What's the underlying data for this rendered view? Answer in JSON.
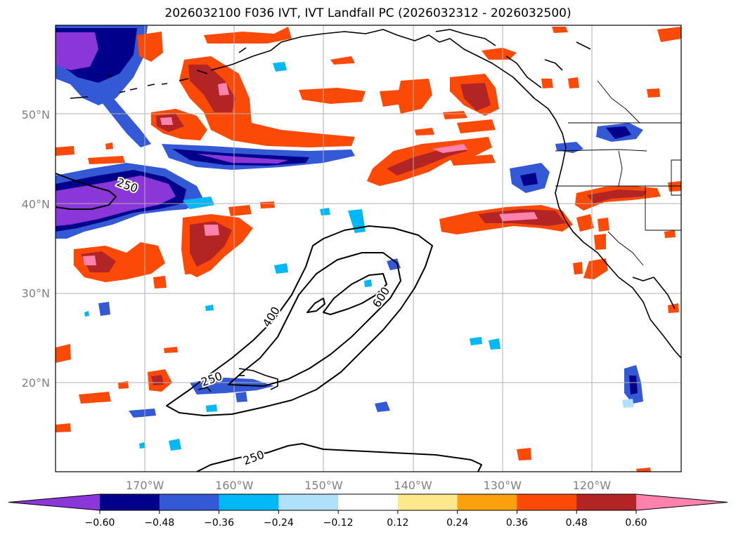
{
  "title": "2026032100 F036 IVT, IVT Landfall PC (2026032312 - 2026032500)",
  "map": {
    "lon_range": [
      -180,
      -110
    ],
    "lat_range": [
      10,
      60
    ],
    "lat_ticks": [
      {
        "value": 50,
        "label": "50°N"
      },
      {
        "value": 40,
        "label": "40°N"
      },
      {
        "value": 30,
        "label": "30°N"
      },
      {
        "value": 20,
        "label": "20°N"
      }
    ],
    "lon_ticks": [
      {
        "value": -170,
        "label": "170°W"
      },
      {
        "value": -160,
        "label": "160°W"
      },
      {
        "value": -150,
        "label": "150°W"
      },
      {
        "value": -140,
        "label": "140°W"
      },
      {
        "value": -130,
        "label": "130°W"
      },
      {
        "value": -120,
        "label": "120°W"
      }
    ],
    "ivt_contour_levels": [
      "250",
      "400",
      "600"
    ],
    "ivt_contour_labels": [
      {
        "text": "250",
        "lon": -172.0,
        "lat": 42.0,
        "angle": 20
      },
      {
        "text": "250",
        "lon": -162.5,
        "lat": 20.3,
        "angle": -20
      },
      {
        "text": "400",
        "lon": -155.8,
        "lat": 27.3,
        "angle": -58
      },
      {
        "text": "600",
        "lon": -143.5,
        "lat": 29.5,
        "angle": -58
      },
      {
        "text": "250",
        "lon": -157.8,
        "lat": 11.5,
        "angle": -20
      }
    ]
  },
  "colorbar": {
    "colors": [
      "#8b36d8",
      "#00008b",
      "#3459d6",
      "#00b8f5",
      "#afe1fa",
      "#ffffff",
      "#fde98c",
      "#fca00e",
      "#fb4a08",
      "#b32525",
      "#ff82ac"
    ],
    "tick_labels": [
      "−0.60",
      "−0.48",
      "−0.36",
      "−0.24",
      "−0.12",
      "0.12",
      "0.24",
      "0.36",
      "0.48",
      "0.60"
    ]
  },
  "colors": {
    "land_line": "#000000",
    "grid": "#b0b0b0",
    "tick_text": "#808080"
  }
}
